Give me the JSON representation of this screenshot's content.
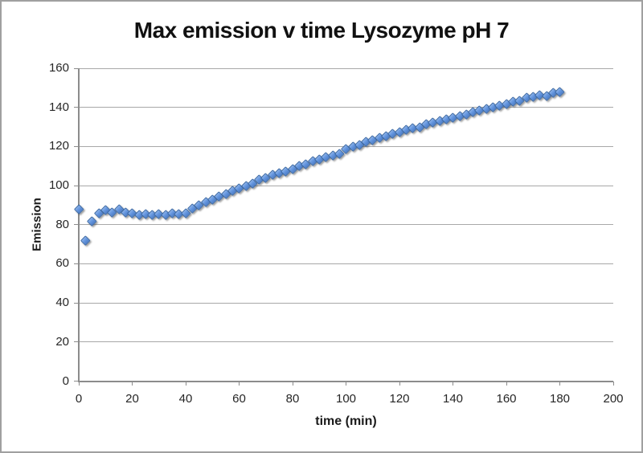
{
  "colors": {
    "frame": "#a0a0a0",
    "grid": "#a8a8a8",
    "axis": "#8c8c8c",
    "text": "#262626",
    "marker_fill": "#6496de",
    "marker_fill_light": "#8ab1ea",
    "marker_fill_dark": "#4f7fc9",
    "marker_stroke": "#3b69a5"
  },
  "chart_data": {
    "type": "scatter",
    "title": "Max emission v time Lysozyme pH 7",
    "xlabel": "time (min)",
    "ylabel": "Emission",
    "xlim": [
      0,
      200
    ],
    "ylim": [
      0,
      160
    ],
    "x_ticks": [
      0,
      20,
      40,
      60,
      80,
      100,
      120,
      140,
      160,
      180,
      200
    ],
    "y_ticks": [
      0,
      20,
      40,
      60,
      80,
      100,
      120,
      140,
      160
    ],
    "grid": "horizontal-only",
    "legend_position": "none",
    "marker": {
      "shape": "diamond",
      "color": "#6496de"
    },
    "series": [
      {
        "name": "Max emission",
        "points": [
          [
            0,
            88
          ],
          [
            2.5,
            72
          ],
          [
            5,
            82
          ],
          [
            7.5,
            86
          ],
          [
            10,
            87.5
          ],
          [
            12.5,
            86.5
          ],
          [
            15,
            88
          ],
          [
            17.5,
            86.5
          ],
          [
            20,
            86
          ],
          [
            22.5,
            85
          ],
          [
            25,
            85.5
          ],
          [
            27.5,
            85
          ],
          [
            30,
            85.5
          ],
          [
            32.5,
            85
          ],
          [
            35,
            86
          ],
          [
            37.5,
            85.5
          ],
          [
            40,
            86
          ],
          [
            42.5,
            88.5
          ],
          [
            45,
            90
          ],
          [
            47.5,
            91.5
          ],
          [
            50,
            93
          ],
          [
            52.5,
            94.5
          ],
          [
            55,
            96
          ],
          [
            57.5,
            97.5
          ],
          [
            60,
            98.5
          ],
          [
            62.5,
            100
          ],
          [
            65,
            101
          ],
          [
            67.5,
            103
          ],
          [
            70,
            104
          ],
          [
            72.5,
            105.5
          ],
          [
            75,
            106.5
          ],
          [
            77.5,
            107.5
          ],
          [
            80,
            108.5
          ],
          [
            82.5,
            110
          ],
          [
            85,
            111
          ],
          [
            87.5,
            112.5
          ],
          [
            90,
            113.5
          ],
          [
            92.5,
            114.5
          ],
          [
            95,
            115.5
          ],
          [
            97.5,
            116.5
          ],
          [
            100,
            119
          ],
          [
            102.5,
            120
          ],
          [
            105,
            121
          ],
          [
            107.5,
            122.5
          ],
          [
            110,
            123.5
          ],
          [
            112.5,
            124.5
          ],
          [
            115,
            125.5
          ],
          [
            117.5,
            126.5
          ],
          [
            120,
            127.5
          ],
          [
            122.5,
            128.5
          ],
          [
            125,
            129.5
          ],
          [
            127.5,
            130
          ],
          [
            130,
            131.5
          ],
          [
            132.5,
            132.5
          ],
          [
            135,
            133
          ],
          [
            137.5,
            134
          ],
          [
            140,
            135
          ],
          [
            142.5,
            135.5
          ],
          [
            145,
            136.5
          ],
          [
            147.5,
            137.5
          ],
          [
            150,
            138.5
          ],
          [
            152.5,
            139.5
          ],
          [
            155,
            140
          ],
          [
            157.5,
            141
          ],
          [
            160,
            142
          ],
          [
            162.5,
            143
          ],
          [
            165,
            143.5
          ],
          [
            167.5,
            145
          ],
          [
            170,
            145.5
          ],
          [
            172.5,
            146.5
          ],
          [
            175,
            146
          ],
          [
            177.5,
            147.5
          ],
          [
            180,
            148
          ]
        ]
      }
    ]
  }
}
